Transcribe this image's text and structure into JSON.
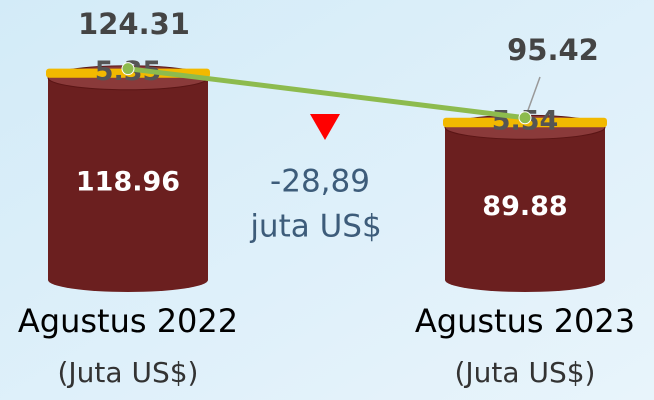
{
  "chart_data": {
    "type": "bar",
    "stacked": true,
    "categories": [
      "Agustus 2022",
      "Agustus 2023"
    ],
    "category_unit": "(Juta US$)",
    "series": [
      {
        "color": "#6b1f1f",
        "values": [
          118.96,
          89.88
        ]
      },
      {
        "color": "#f2b900",
        "values": [
          5.35,
          5.54
        ]
      }
    ],
    "totals": {
      "color": "#8dbb4e",
      "values": [
        124.31,
        95.42
      ]
    },
    "annotation": {
      "value_text": "-28,89",
      "unit_text": "juta US$",
      "color": "#ff0000"
    }
  }
}
